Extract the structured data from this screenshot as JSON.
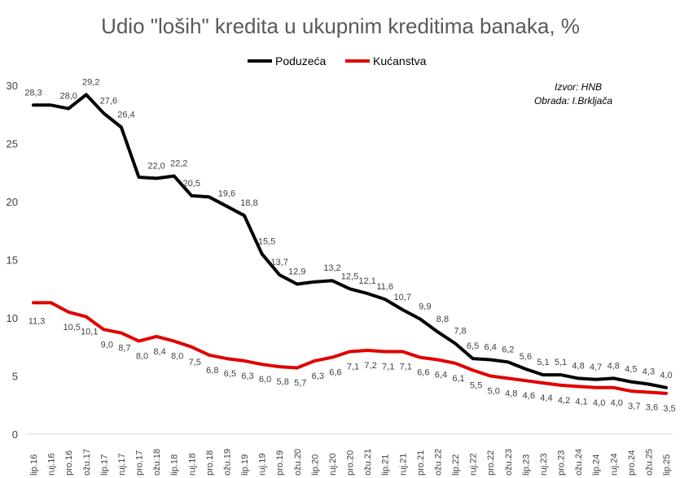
{
  "chart_data": {
    "type": "line",
    "title": "Udio \"loših\" kredita u ukupnim kreditima banaka, %",
    "source_line1": "Izvor: HNB",
    "source_line2": "Obrada: I.Brkljača",
    "legend_position": "top",
    "grid": false,
    "ylim": [
      0,
      30
    ],
    "yticks": [
      0,
      5,
      10,
      15,
      20,
      25,
      30
    ],
    "categories": [
      "lip.16",
      "ruj.16",
      "pro.16",
      "ožu.17",
      "lip.17",
      "ruj.17",
      "pro.17",
      "ožu.18",
      "lip.18",
      "ruj.18",
      "pro.18",
      "ožu.19",
      "lip.19",
      "ruj.19",
      "pro.19",
      "ožu.20",
      "lip.20",
      "ruj.20",
      "pro.20",
      "ožu.21",
      "lip.21",
      "ruj.21",
      "pro.21",
      "ožu.22",
      "lip.22",
      "ruj.22",
      "pro.22",
      "ožu.23",
      "lip.23",
      "ruj.23",
      "pro.23",
      "ožu.24",
      "lip.24",
      "ruj.24",
      "pro.24",
      "ožu.25",
      "lip.25"
    ],
    "x": [
      "lip.16",
      "",
      "ruj.16",
      "",
      "pro.16",
      "",
      "ožu.17",
      "",
      "lip.17",
      "",
      "ruj.17",
      "",
      "pro.17",
      "",
      "ožu.18",
      "",
      "lip.18",
      "",
      "ruj.18",
      "",
      "pro.18",
      "",
      "ožu.19",
      "",
      "lip.19",
      "",
      "ruj.19",
      "",
      "pro.19",
      "",
      "ožu.20",
      "",
      "lip.20",
      "",
      "ruj.20",
      "",
      "pro.20",
      "",
      "ožu.21",
      "",
      "lip.21",
      "",
      "ruj.21",
      "",
      "pro.21",
      "",
      "ožu.22",
      "",
      "lip.22",
      "",
      "ruj.22",
      "",
      "pro.22",
      "",
      "ožu.23",
      "",
      "lip.23",
      "",
      "ruj.23",
      "",
      "pro.23",
      "",
      "ožu.24",
      "",
      "lip.24",
      "",
      "ruj.24",
      "",
      "pro.24",
      "",
      "ožu.25",
      "",
      "lip.25"
    ],
    "series": [
      {
        "name": "Poduzeća",
        "color": "#000000",
        "values": [
          28.3,
          28.3,
          28.0,
          29.2,
          27.6,
          26.4,
          22.1,
          22.0,
          22.2,
          20.5,
          20.4,
          19.6,
          18.8,
          15.5,
          13.7,
          12.9,
          13.1,
          13.2,
          12.5,
          12.1,
          11.6,
          10.7,
          9.9,
          8.8,
          7.8,
          6.5,
          6.4,
          6.2,
          5.6,
          5.1,
          5.1,
          4.8,
          4.7,
          4.8,
          4.5,
          4.3,
          4.0
        ]
      },
      {
        "name": "Kućanstva",
        "color": "#e00000",
        "values": [
          11.3,
          11.3,
          10.5,
          10.1,
          9.0,
          8.7,
          8.0,
          8.4,
          8.0,
          7.5,
          6.8,
          6.5,
          6.3,
          6.0,
          5.8,
          5.7,
          6.3,
          6.6,
          7.1,
          7.2,
          7.1,
          7.1,
          6.6,
          6.4,
          6.1,
          5.5,
          5.0,
          4.8,
          4.6,
          4.4,
          4.2,
          4.1,
          4.0,
          4.0,
          3.7,
          3.6,
          3.5
        ]
      }
    ],
    "data_labels": {
      "Poduzeća": [
        {
          "i": 0,
          "text": "28,3"
        },
        {
          "i": 2,
          "text": "28,0"
        },
        {
          "i": 3,
          "text": "29,2"
        },
        {
          "i": 4,
          "text": "27,6"
        },
        {
          "i": 5,
          "text": "26,4"
        },
        {
          "i": 7,
          "text": "22,0"
        },
        {
          "i": 8,
          "text": "22,2"
        },
        {
          "i": 9,
          "text": "20,5"
        },
        {
          "i": 11,
          "text": "19,6"
        },
        {
          "i": 12,
          "text": "18,8"
        },
        {
          "i": 13,
          "text": "15,5"
        },
        {
          "i": 14,
          "text": "13,7"
        },
        {
          "i": 15,
          "text": "12,9"
        },
        {
          "i": 17,
          "text": "13,2"
        },
        {
          "i": 18,
          "text": "12,5"
        },
        {
          "i": 19,
          "text": "12,1"
        },
        {
          "i": 20,
          "text": "11,6"
        },
        {
          "i": 21,
          "text": "10,7"
        },
        {
          "i": 22,
          "text": "9,9"
        },
        {
          "i": 23,
          "text": "8,8"
        },
        {
          "i": 24,
          "text": "7,8"
        },
        {
          "i": 25,
          "text": "6,5"
        },
        {
          "i": 26,
          "text": "6,4"
        },
        {
          "i": 27,
          "text": "6,2"
        },
        {
          "i": 28,
          "text": "5,6"
        },
        {
          "i": 29,
          "text": "5,1"
        },
        {
          "i": 30,
          "text": "5,1"
        },
        {
          "i": 31,
          "text": "4,8"
        },
        {
          "i": 32,
          "text": "4,7"
        },
        {
          "i": 33,
          "text": "4,8"
        },
        {
          "i": 34,
          "text": "4,5"
        },
        {
          "i": 35,
          "text": "4,3"
        },
        {
          "i": 36,
          "text": "4,0"
        }
      ],
      "Kućanstva": [
        {
          "i": 0,
          "text": "11,3"
        },
        {
          "i": 2,
          "text": "10,5"
        },
        {
          "i": 3,
          "text": "10,1"
        },
        {
          "i": 4,
          "text": "9,0"
        },
        {
          "i": 5,
          "text": "8,7"
        },
        {
          "i": 6,
          "text": "8,0"
        },
        {
          "i": 7,
          "text": "8,4"
        },
        {
          "i": 8,
          "text": "8,0"
        },
        {
          "i": 9,
          "text": "7,5"
        },
        {
          "i": 10,
          "text": "6,8"
        },
        {
          "i": 11,
          "text": "6,5"
        },
        {
          "i": 12,
          "text": "6,3"
        },
        {
          "i": 13,
          "text": "6,0"
        },
        {
          "i": 14,
          "text": "5,8"
        },
        {
          "i": 15,
          "text": "5,7"
        },
        {
          "i": 16,
          "text": "6,3"
        },
        {
          "i": 17,
          "text": "6,6"
        },
        {
          "i": 18,
          "text": "7,1"
        },
        {
          "i": 19,
          "text": "7,2"
        },
        {
          "i": 20,
          "text": "7,1"
        },
        {
          "i": 21,
          "text": "7,1"
        },
        {
          "i": 22,
          "text": "6,6"
        },
        {
          "i": 23,
          "text": "6,4"
        },
        {
          "i": 24,
          "text": "6,1"
        },
        {
          "i": 25,
          "text": "5,5"
        },
        {
          "i": 26,
          "text": "5,0"
        },
        {
          "i": 27,
          "text": "4,8"
        },
        {
          "i": 28,
          "text": "4,6"
        },
        {
          "i": 29,
          "text": "4,4"
        },
        {
          "i": 30,
          "text": "4,2"
        },
        {
          "i": 31,
          "text": "4,1"
        },
        {
          "i": 32,
          "text": "4,0"
        },
        {
          "i": 33,
          "text": "4,0"
        },
        {
          "i": 34,
          "text": "3,7"
        },
        {
          "i": 35,
          "text": "3,6"
        },
        {
          "i": 36,
          "text": "3,5"
        }
      ]
    }
  }
}
